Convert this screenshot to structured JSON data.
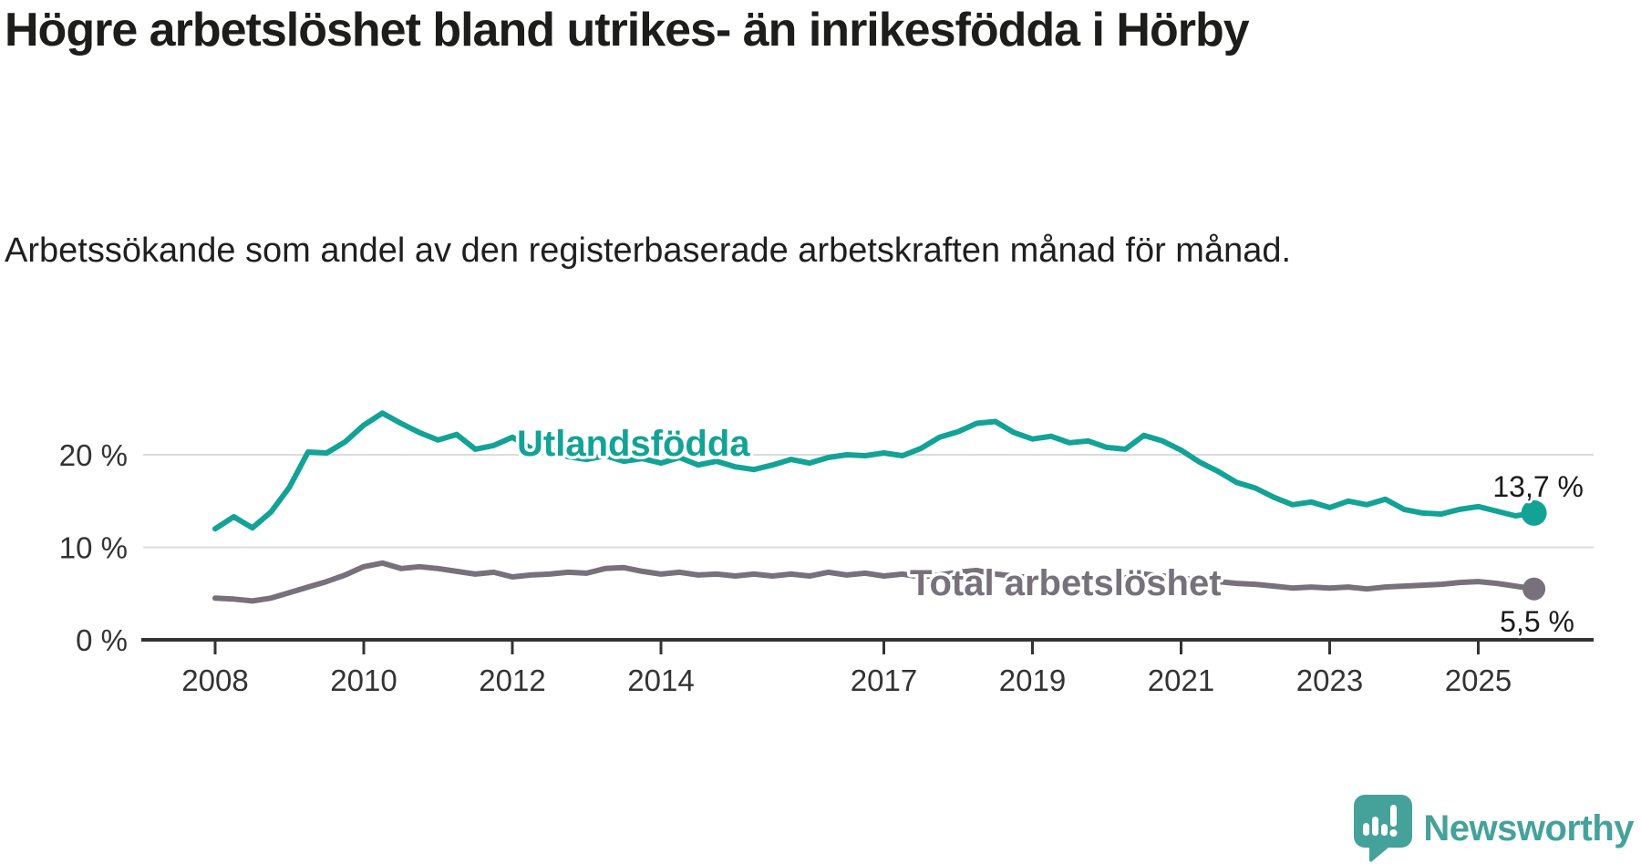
{
  "header": {
    "title": "Högre arbetslöshet bland utrikes- än inrikesfödda i Hörby",
    "subtitle": "Arbetssökande som andel av den registerbaserade arbetskraften månad för månad."
  },
  "chart_data": {
    "type": "line",
    "title": "Högre arbetslöshet bland utrikes- än inrikesfödda i Hörby",
    "xlabel": "",
    "ylabel": "Arbetssökande som andel av den registerbaserade arbetskraften",
    "grid": "horizontal",
    "legend_position": "inline-labels",
    "xlim": [
      2007.8,
      2026.4
    ],
    "ylim": [
      0,
      26
    ],
    "x_tick_years": [
      2008,
      2010,
      2012,
      2014,
      2017,
      2019,
      2021,
      2023,
      2025
    ],
    "y_ticks": [
      {
        "value": 0,
        "label": "0 %"
      },
      {
        "value": 10,
        "label": "10 %"
      },
      {
        "value": 20,
        "label": "20 %"
      }
    ],
    "x_start": 2008.0,
    "x_step": 0.25,
    "series": [
      {
        "name": "Total arbetslöshet",
        "color": "#76717a",
        "end_label": "5,5 %",
        "end_value": 5.5,
        "values": [
          4.5,
          4.4,
          4.2,
          4.5,
          5.1,
          5.7,
          6.3,
          7.0,
          7.9,
          8.3,
          7.7,
          7.9,
          7.7,
          7.4,
          7.1,
          7.3,
          6.8,
          7.0,
          7.1,
          7.3,
          7.2,
          7.7,
          7.8,
          7.4,
          7.1,
          7.3,
          7.0,
          7.1,
          6.9,
          7.1,
          6.9,
          7.1,
          6.9,
          7.3,
          7.0,
          7.2,
          6.9,
          7.1,
          6.8,
          7.0,
          7.3,
          7.5,
          7.1,
          6.9,
          6.7,
          6.5,
          6.3,
          6.5,
          6.4,
          6.7,
          7.1,
          6.9,
          6.7,
          6.4,
          6.3,
          6.1,
          6.0,
          5.8,
          5.6,
          5.7,
          5.6,
          5.7,
          5.5,
          5.7,
          5.8,
          5.9,
          6.0,
          6.2,
          6.3,
          6.1,
          5.8,
          5.5
        ]
      },
      {
        "name": "Utlandsfödda",
        "color": "#12a396",
        "end_label": "13,7 %",
        "end_value": 13.7,
        "values": [
          12.0,
          13.3,
          12.1,
          13.8,
          16.5,
          20.3,
          20.2,
          21.4,
          23.2,
          24.5,
          23.4,
          22.4,
          21.6,
          22.2,
          20.6,
          21.0,
          21.9,
          20.7,
          20.6,
          19.8,
          19.5,
          19.9,
          19.3,
          19.6,
          19.1,
          19.7,
          18.9,
          19.3,
          18.7,
          18.4,
          18.9,
          19.5,
          19.1,
          19.7,
          20.0,
          19.9,
          20.2,
          19.9,
          20.7,
          21.9,
          22.5,
          23.4,
          23.6,
          22.4,
          21.7,
          22.0,
          21.3,
          21.5,
          20.8,
          20.6,
          22.1,
          21.5,
          20.5,
          19.2,
          18.2,
          17.0,
          16.4,
          15.4,
          14.6,
          14.9,
          14.3,
          15.0,
          14.6,
          15.2,
          14.1,
          13.7,
          13.6,
          14.1,
          14.4,
          13.9,
          13.4,
          13.7
        ]
      }
    ]
  },
  "footer": {
    "brand": "Newsworthy",
    "brand_color": "#45a29b",
    "logo_icon": "speech-bubble-bar-chart-icon"
  }
}
